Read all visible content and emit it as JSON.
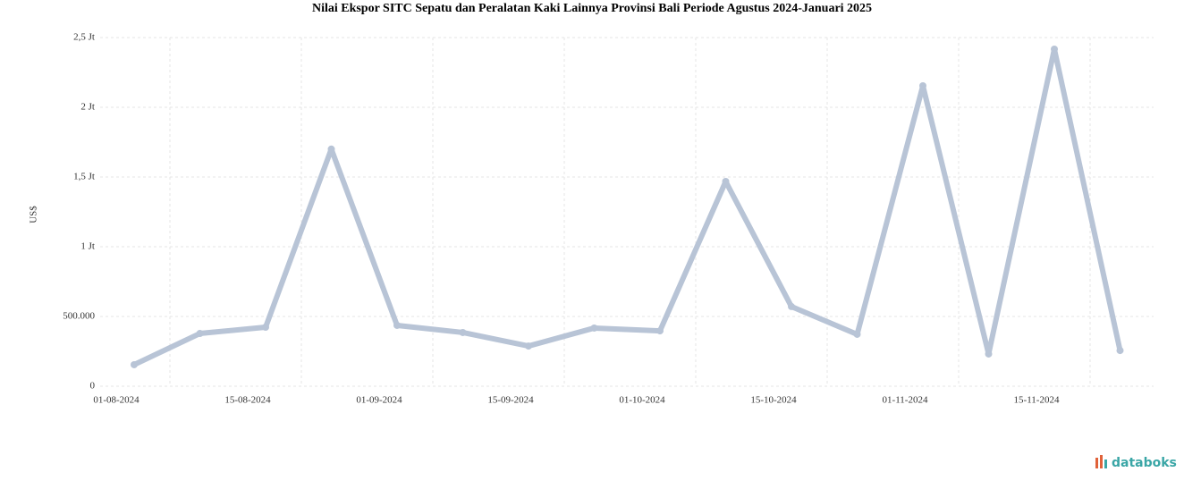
{
  "chart_data": {
    "type": "line",
    "title": "Nilai Ekspor SITC Sepatu dan Peralatan Kaki Lainnya Provinsi Bali Periode Agustus 2024-Januari 2025",
    "y_label": "US$",
    "categories": [
      "01-08-2024",
      null,
      "15-08-2024",
      null,
      "01-09-2024",
      null,
      "15-09-2024",
      null,
      "01-10-2024",
      null,
      "15-10-2024",
      null,
      "01-11-2024",
      null,
      "15-11-2024",
      null
    ],
    "series": [
      {
        "name": "Nilai Ekspor",
        "color": "#b8c4d6",
        "values": [
          154000,
          378000,
          423000,
          1700000,
          436000,
          385000,
          288000,
          417000,
          397000,
          1468000,
          571000,
          372000,
          2154000,
          231000,
          2417000,
          256000
        ]
      }
    ],
    "ylim": [
      0,
      2500000
    ],
    "yticks": [
      0,
      {
        "value": 500000,
        "label": "500.000"
      },
      {
        "value": 1000000,
        "label": "1 Jt"
      },
      {
        "value": 1500000,
        "label": "1,5 Jt"
      },
      {
        "value": 2000000,
        "label": "2 Jt"
      },
      {
        "value": 2500000,
        "label": "2,5 Jt"
      }
    ],
    "grid": true,
    "source": "databoks"
  }
}
